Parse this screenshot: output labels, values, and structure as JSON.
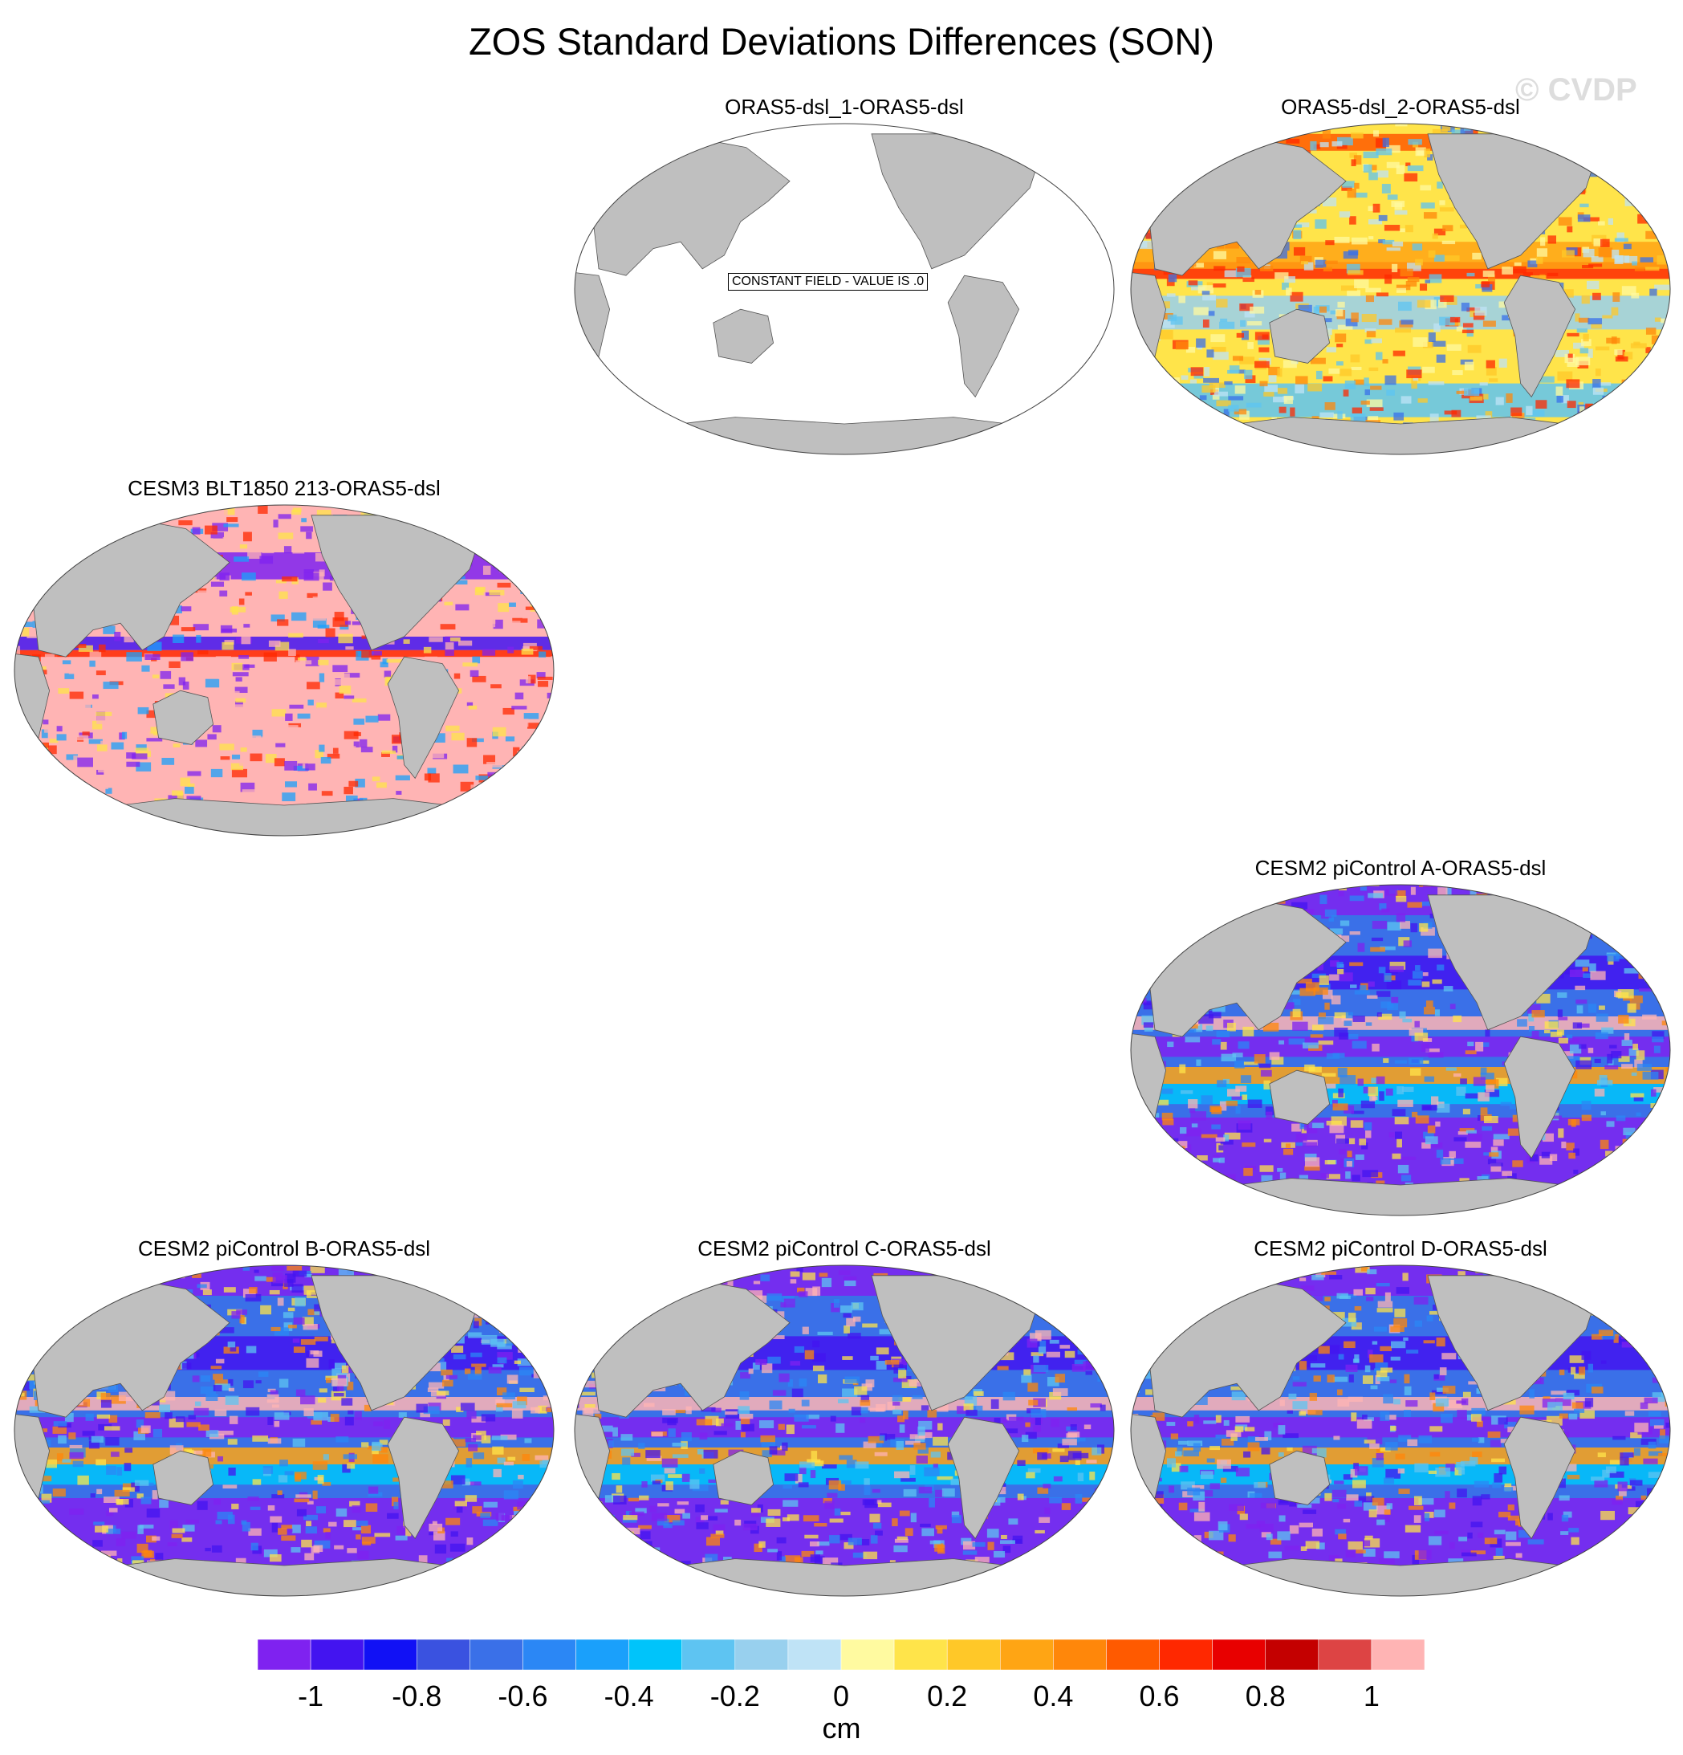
{
  "figure": {
    "title": "ZOS Standard Deviations Differences (SON)",
    "watermark": "© CVDP"
  },
  "panels": [
    {
      "id": "p1",
      "title": "ORAS5-dsl_1-ORAS5-dsl",
      "field": "constant",
      "note": "CONSTANT FIELD - VALUE IS .0"
    },
    {
      "id": "p2",
      "title": "ORAS5-dsl_2-ORAS5-dsl",
      "field": "warm"
    },
    {
      "id": "p3",
      "title": "CESM3 BLT1850 213-ORAS5-dsl",
      "field": "pink"
    },
    {
      "id": "p4",
      "title": "CESM2 piControl A-ORAS5-dsl",
      "field": "cool"
    },
    {
      "id": "p5",
      "title": "CESM2 piControl B-ORAS5-dsl",
      "field": "cool"
    },
    {
      "id": "p6",
      "title": "CESM2 piControl C-ORAS5-dsl",
      "field": "cool"
    },
    {
      "id": "p7",
      "title": "CESM2 piControl D-ORAS5-dsl",
      "field": "cool"
    }
  ],
  "colorbar": {
    "unit": "cm",
    "tick_labels": [
      "-1",
      "-0.8",
      "-0.6",
      "-0.4",
      "-0.2",
      "0",
      "0.2",
      "0.4",
      "0.6",
      "0.8",
      "1"
    ],
    "colors": [
      "#7f22f0",
      "#4314f0",
      "#1111f5",
      "#3a52e0",
      "#3a70e8",
      "#2b87f5",
      "#1aa0fb",
      "#00c4fa",
      "#5ec4f2",
      "#98d0ee",
      "#bfe3f6",
      "#fffaa0",
      "#ffe44a",
      "#ffc828",
      "#ffa514",
      "#ff870a",
      "#ff5a00",
      "#ff2800",
      "#e80000",
      "#c40000",
      "#dd4444",
      "#ffb4b4"
    ]
  },
  "land_color": "#bfbfbf"
}
